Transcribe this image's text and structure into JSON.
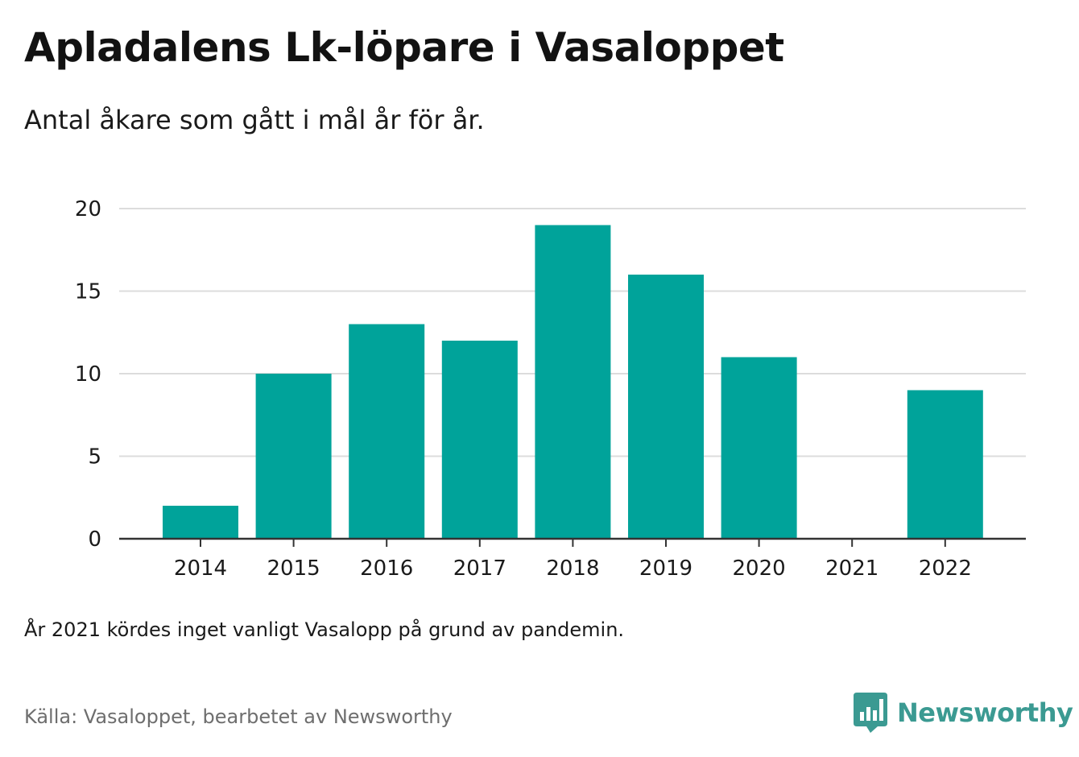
{
  "title": "Apladalens Lk-löpare i Vasaloppet",
  "subtitle": "Antal åkare som gått i mål år för år.",
  "note": "År 2021 kördes inget vanligt Vasalopp på grund av pandemin.",
  "source": "Källa: Vasaloppet, bearbetet av Newsworthy",
  "brand": {
    "name": "Newsworthy",
    "icon": "newsworthy-logo-icon"
  },
  "colors": {
    "bar": "#00a39a",
    "grid": "#dcdcdc",
    "axis": "#333333",
    "brand": "#3b9a92"
  },
  "chart_data": {
    "type": "bar",
    "categories": [
      "2014",
      "2015",
      "2016",
      "2017",
      "2018",
      "2019",
      "2020",
      "2021",
      "2022"
    ],
    "values": [
      2,
      10,
      13,
      12,
      19,
      16,
      11,
      0,
      9
    ],
    "yticks": [
      "0",
      "5",
      "10",
      "15",
      "20"
    ],
    "ylim": [
      0,
      20
    ],
    "grid": true,
    "xlabel": "",
    "ylabel": ""
  }
}
